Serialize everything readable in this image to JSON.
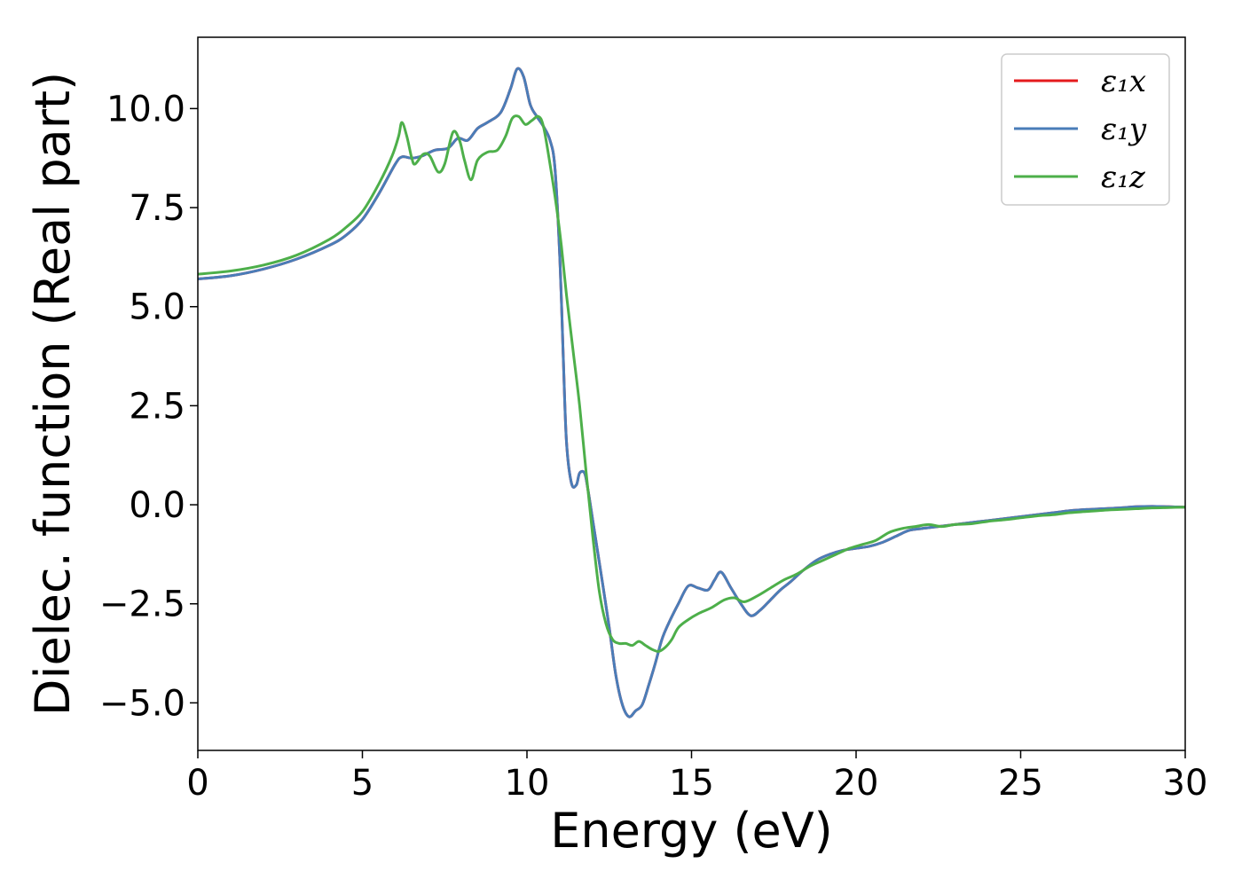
{
  "chart_data": {
    "type": "line",
    "title": "",
    "xlabel": "Energy (eV)",
    "ylabel": "Dielec. function (Real part)",
    "xlim": [
      0,
      30
    ],
    "ylim": [
      -6.2,
      11.8
    ],
    "xticks": [
      0,
      5,
      10,
      15,
      20,
      25,
      30
    ],
    "xtick_labels": [
      "0",
      "5",
      "10",
      "15",
      "20",
      "25",
      "30"
    ],
    "yticks": [
      -5.0,
      -2.5,
      0.0,
      2.5,
      5.0,
      7.5,
      10.0
    ],
    "ytick_labels": [
      "−5.0",
      "−2.5",
      "0.0",
      "2.5",
      "5.0",
      "7.5",
      "10.0"
    ],
    "grid": false,
    "legend_position": "top-right",
    "series": [
      {
        "name": "ε₁x",
        "color": "#e41a1c",
        "x": [
          0,
          1,
          2,
          3,
          4,
          4.5,
          5,
          5.5,
          6,
          6.2,
          6.5,
          6.8,
          7.2,
          7.6,
          7.9,
          8.2,
          8.5,
          8.8,
          9.2,
          9.5,
          9.7,
          9.9,
          10.1,
          10.3,
          10.5,
          10.7,
          10.85,
          11.0,
          11.1,
          11.2,
          11.35,
          11.5,
          11.6,
          11.75,
          11.85,
          12.0,
          12.15,
          12.3,
          12.5,
          12.7,
          12.9,
          13.1,
          13.3,
          13.5,
          13.7,
          13.9,
          14.1,
          14.3,
          14.6,
          14.9,
          15.2,
          15.5,
          15.7,
          15.9,
          16.2,
          16.5,
          16.8,
          17.1,
          17.4,
          17.7,
          18.0,
          18.4,
          18.8,
          19.2,
          19.6,
          20.0,
          20.4,
          20.8,
          21.2,
          21.6,
          22.0,
          22.5,
          23.0,
          23.5,
          24.0,
          24.5,
          25.0,
          25.5,
          26.0,
          26.5,
          27.0,
          27.5,
          28.0,
          28.5,
          29.0,
          29.5,
          30.0
        ],
        "values": [
          5.7,
          5.78,
          5.95,
          6.2,
          6.55,
          6.8,
          7.2,
          7.85,
          8.6,
          8.78,
          8.75,
          8.8,
          8.95,
          9.0,
          9.25,
          9.2,
          9.5,
          9.65,
          9.9,
          10.5,
          11.0,
          10.8,
          10.1,
          9.8,
          9.55,
          9.2,
          8.5,
          6.2,
          3.8,
          1.6,
          0.55,
          0.5,
          0.8,
          0.8,
          0.4,
          -0.4,
          -1.2,
          -2.0,
          -3.1,
          -4.3,
          -5.05,
          -5.35,
          -5.2,
          -5.05,
          -4.55,
          -4.0,
          -3.4,
          -3.0,
          -2.5,
          -2.05,
          -2.1,
          -2.15,
          -1.9,
          -1.7,
          -2.1,
          -2.5,
          -2.8,
          -2.65,
          -2.4,
          -2.15,
          -1.95,
          -1.65,
          -1.4,
          -1.25,
          -1.15,
          -1.1,
          -1.05,
          -0.95,
          -0.8,
          -0.65,
          -0.6,
          -0.55,
          -0.5,
          -0.45,
          -0.4,
          -0.35,
          -0.3,
          -0.25,
          -0.2,
          -0.15,
          -0.12,
          -0.1,
          -0.08,
          -0.05,
          -0.04,
          -0.05,
          -0.06
        ]
      },
      {
        "name": "ε₁y",
        "color": "#4a7db8",
        "x": [
          0,
          1,
          2,
          3,
          4,
          4.5,
          5,
          5.5,
          6,
          6.2,
          6.5,
          6.8,
          7.2,
          7.6,
          7.9,
          8.2,
          8.5,
          8.8,
          9.2,
          9.5,
          9.7,
          9.9,
          10.1,
          10.3,
          10.5,
          10.7,
          10.85,
          11.0,
          11.1,
          11.2,
          11.35,
          11.5,
          11.6,
          11.75,
          11.85,
          12.0,
          12.15,
          12.3,
          12.5,
          12.7,
          12.9,
          13.1,
          13.3,
          13.5,
          13.7,
          13.9,
          14.1,
          14.3,
          14.6,
          14.9,
          15.2,
          15.5,
          15.7,
          15.9,
          16.2,
          16.5,
          16.8,
          17.1,
          17.4,
          17.7,
          18.0,
          18.4,
          18.8,
          19.2,
          19.6,
          20.0,
          20.4,
          20.8,
          21.2,
          21.6,
          22.0,
          22.5,
          23.0,
          23.5,
          24.0,
          24.5,
          25.0,
          25.5,
          26.0,
          26.5,
          27.0,
          27.5,
          28.0,
          28.5,
          29.0,
          29.5,
          30.0
        ],
        "values": [
          5.7,
          5.78,
          5.95,
          6.2,
          6.55,
          6.8,
          7.2,
          7.85,
          8.6,
          8.78,
          8.75,
          8.8,
          8.95,
          9.0,
          9.25,
          9.2,
          9.5,
          9.65,
          9.9,
          10.5,
          11.0,
          10.8,
          10.1,
          9.8,
          9.55,
          9.2,
          8.5,
          6.2,
          3.8,
          1.6,
          0.55,
          0.5,
          0.8,
          0.8,
          0.4,
          -0.4,
          -1.2,
          -2.0,
          -3.1,
          -4.3,
          -5.05,
          -5.35,
          -5.2,
          -5.05,
          -4.55,
          -4.0,
          -3.4,
          -3.0,
          -2.5,
          -2.05,
          -2.1,
          -2.15,
          -1.9,
          -1.7,
          -2.1,
          -2.5,
          -2.8,
          -2.65,
          -2.4,
          -2.15,
          -1.95,
          -1.65,
          -1.4,
          -1.25,
          -1.15,
          -1.1,
          -1.05,
          -0.95,
          -0.8,
          -0.65,
          -0.6,
          -0.55,
          -0.5,
          -0.45,
          -0.4,
          -0.35,
          -0.3,
          -0.25,
          -0.2,
          -0.15,
          -0.12,
          -0.1,
          -0.08,
          -0.05,
          -0.04,
          -0.05,
          -0.06
        ]
      },
      {
        "name": "ε₁z",
        "color": "#4daf4a",
        "x": [
          0,
          1,
          2,
          3,
          4,
          4.5,
          5,
          5.5,
          5.9,
          6.1,
          6.2,
          6.35,
          6.5,
          6.6,
          6.85,
          7.05,
          7.3,
          7.5,
          7.75,
          7.95,
          8.1,
          8.3,
          8.5,
          8.8,
          9.1,
          9.35,
          9.55,
          9.75,
          9.95,
          10.15,
          10.35,
          10.5,
          10.7,
          10.9,
          11.05,
          11.2,
          11.4,
          11.6,
          11.8,
          12.0,
          12.2,
          12.4,
          12.6,
          12.8,
          13.0,
          13.2,
          13.4,
          13.6,
          13.8,
          14.0,
          14.2,
          14.4,
          14.6,
          14.9,
          15.2,
          15.6,
          16.0,
          16.3,
          16.6,
          17.0,
          17.4,
          17.8,
          18.2,
          18.6,
          19.0,
          19.4,
          19.8,
          20.2,
          20.6,
          21.0,
          21.4,
          21.8,
          22.2,
          22.6,
          23.0,
          23.5,
          24.0,
          24.5,
          25.0,
          25.5,
          26.0,
          26.5,
          27.0,
          27.5,
          28.0,
          28.5,
          29.0,
          29.5,
          30.0
        ],
        "values": [
          5.82,
          5.9,
          6.05,
          6.3,
          6.7,
          7.0,
          7.4,
          8.1,
          8.8,
          9.3,
          9.65,
          9.3,
          8.75,
          8.6,
          8.85,
          8.8,
          8.4,
          8.6,
          9.4,
          9.2,
          8.7,
          8.2,
          8.7,
          8.9,
          8.95,
          9.3,
          9.75,
          9.8,
          9.6,
          9.7,
          9.8,
          9.55,
          8.6,
          7.5,
          6.5,
          5.3,
          3.9,
          2.5,
          0.8,
          -0.8,
          -2.2,
          -3.0,
          -3.4,
          -3.5,
          -3.5,
          -3.55,
          -3.45,
          -3.55,
          -3.65,
          -3.7,
          -3.6,
          -3.4,
          -3.1,
          -2.9,
          -2.75,
          -2.6,
          -2.4,
          -2.35,
          -2.45,
          -2.3,
          -2.1,
          -1.9,
          -1.75,
          -1.55,
          -1.4,
          -1.25,
          -1.1,
          -1.0,
          -0.9,
          -0.7,
          -0.6,
          -0.55,
          -0.5,
          -0.55,
          -0.5,
          -0.48,
          -0.42,
          -0.38,
          -0.33,
          -0.28,
          -0.25,
          -0.2,
          -0.17,
          -0.14,
          -0.12,
          -0.1,
          -0.08,
          -0.07,
          -0.06
        ]
      }
    ]
  }
}
